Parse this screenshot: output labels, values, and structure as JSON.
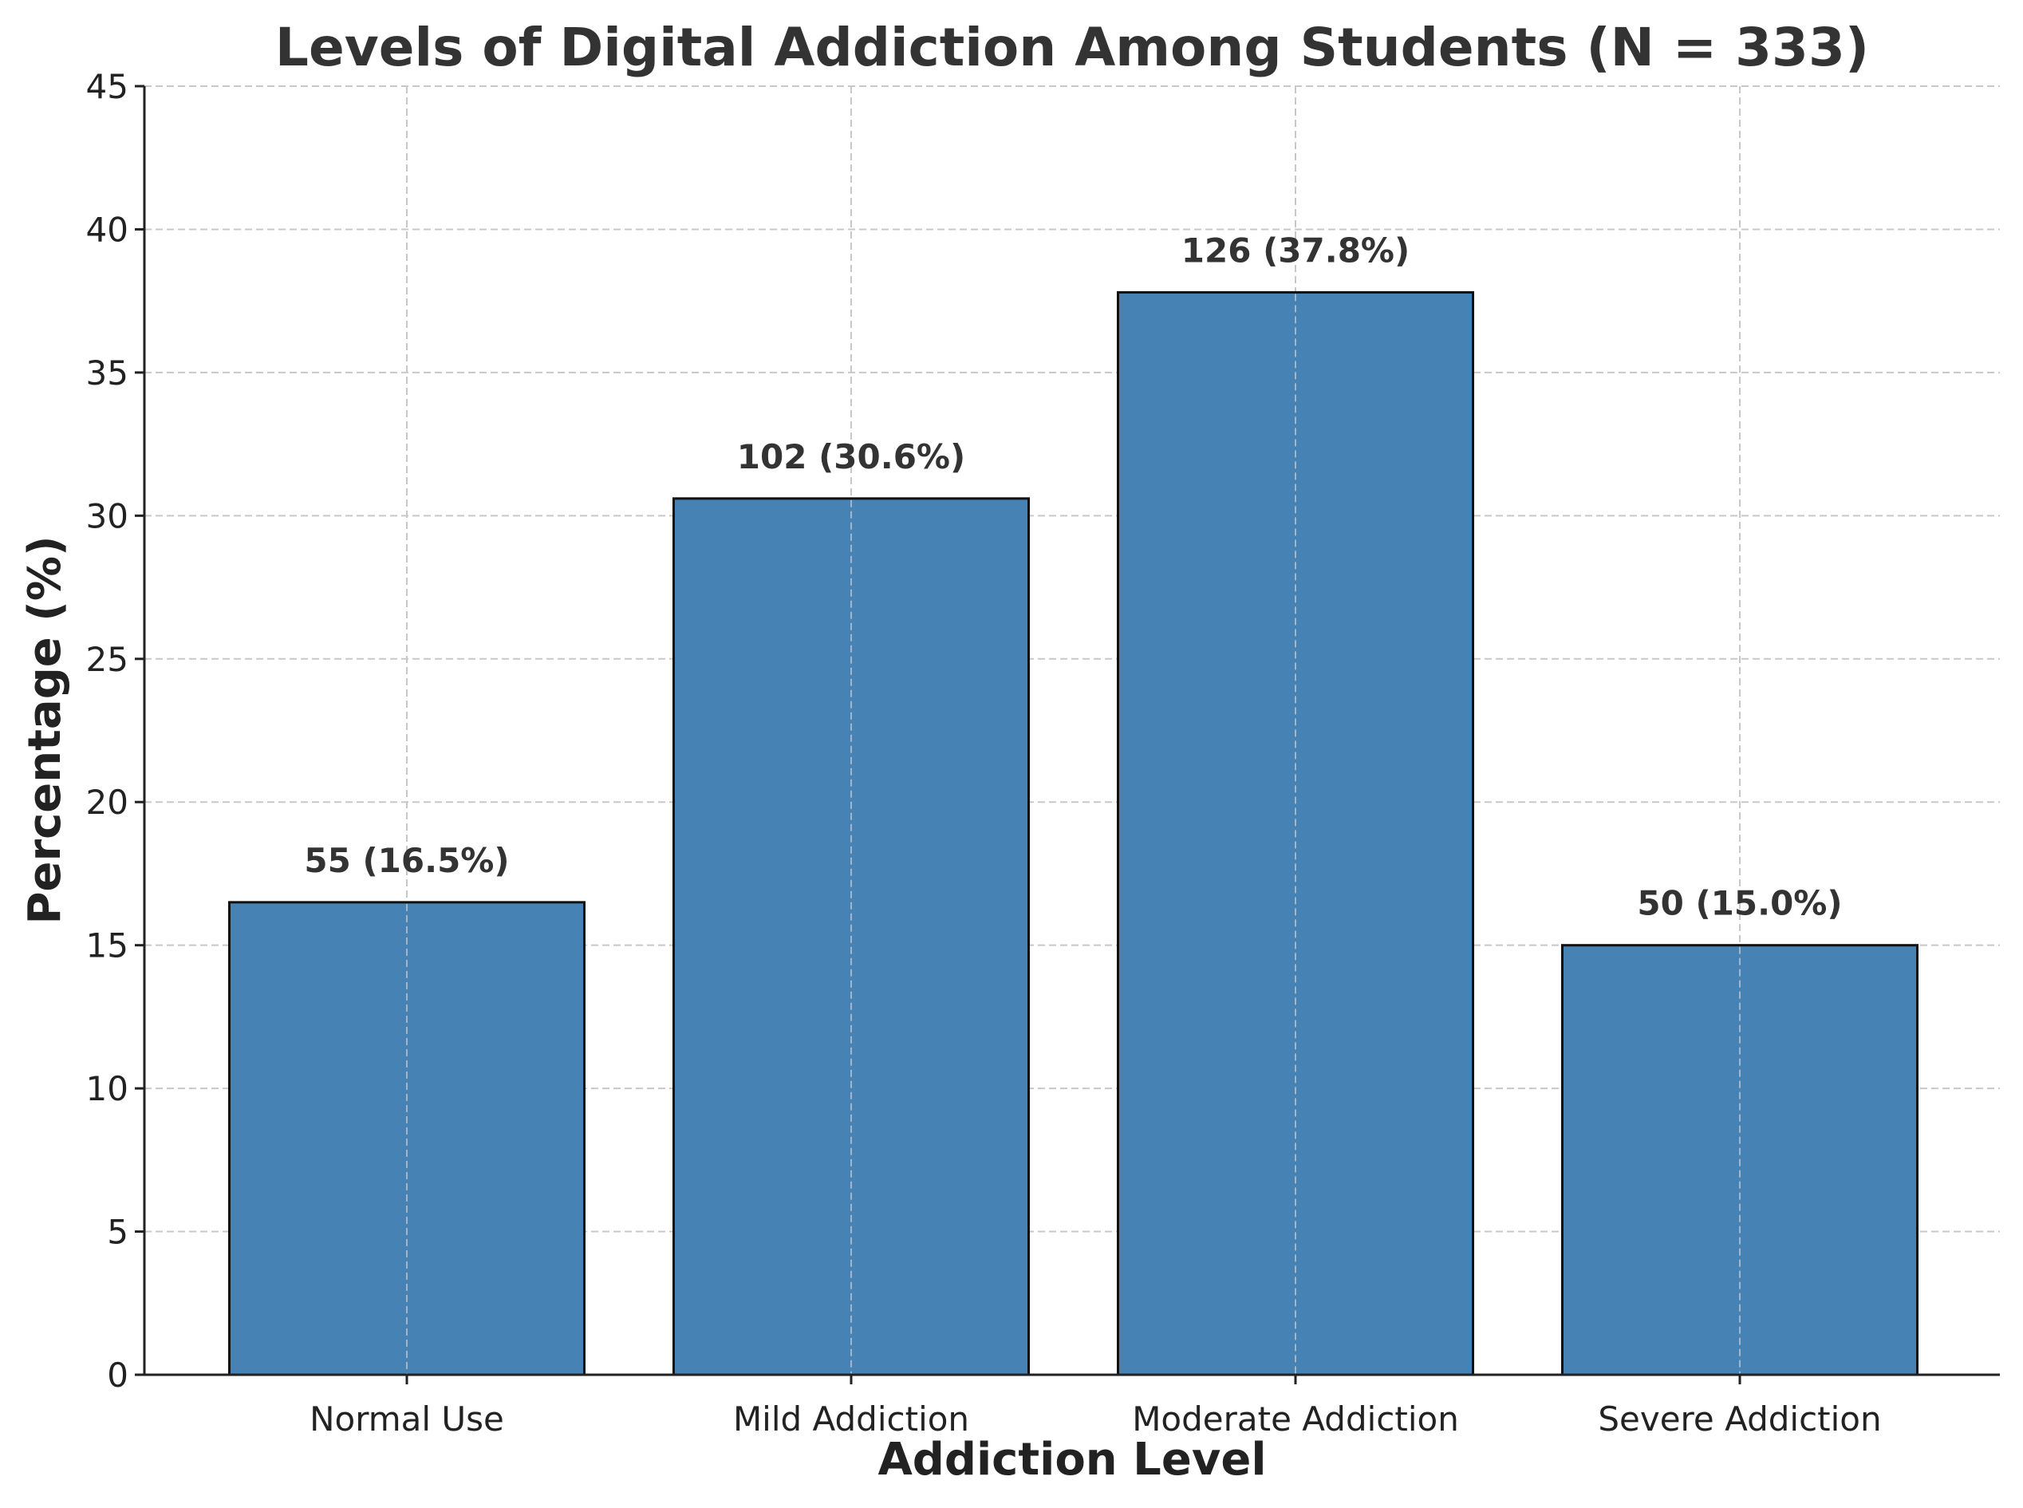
{
  "chart_data": {
    "type": "bar",
    "title": "Levels of Digital Addiction Among Students (N = 333)",
    "xlabel": "Addiction Level",
    "ylabel": "Percentage (%)",
    "categories": [
      "Normal Use",
      "Mild Addiction",
      "Moderate Addiction",
      "Severe Addiction"
    ],
    "values": [
      16.5,
      30.6,
      37.8,
      15.0
    ],
    "counts": [
      55,
      102,
      126,
      50
    ],
    "data_labels": [
      "55 (16.5%)",
      "102 (30.6%)",
      "126 (37.8%)",
      "50 (15.0%)"
    ],
    "ylim": [
      0,
      45
    ],
    "yticks": [
      0,
      5,
      10,
      15,
      20,
      25,
      30,
      35,
      40,
      45
    ],
    "grid": true,
    "bar_color": "#4682b4",
    "edge_color": "#111111"
  }
}
